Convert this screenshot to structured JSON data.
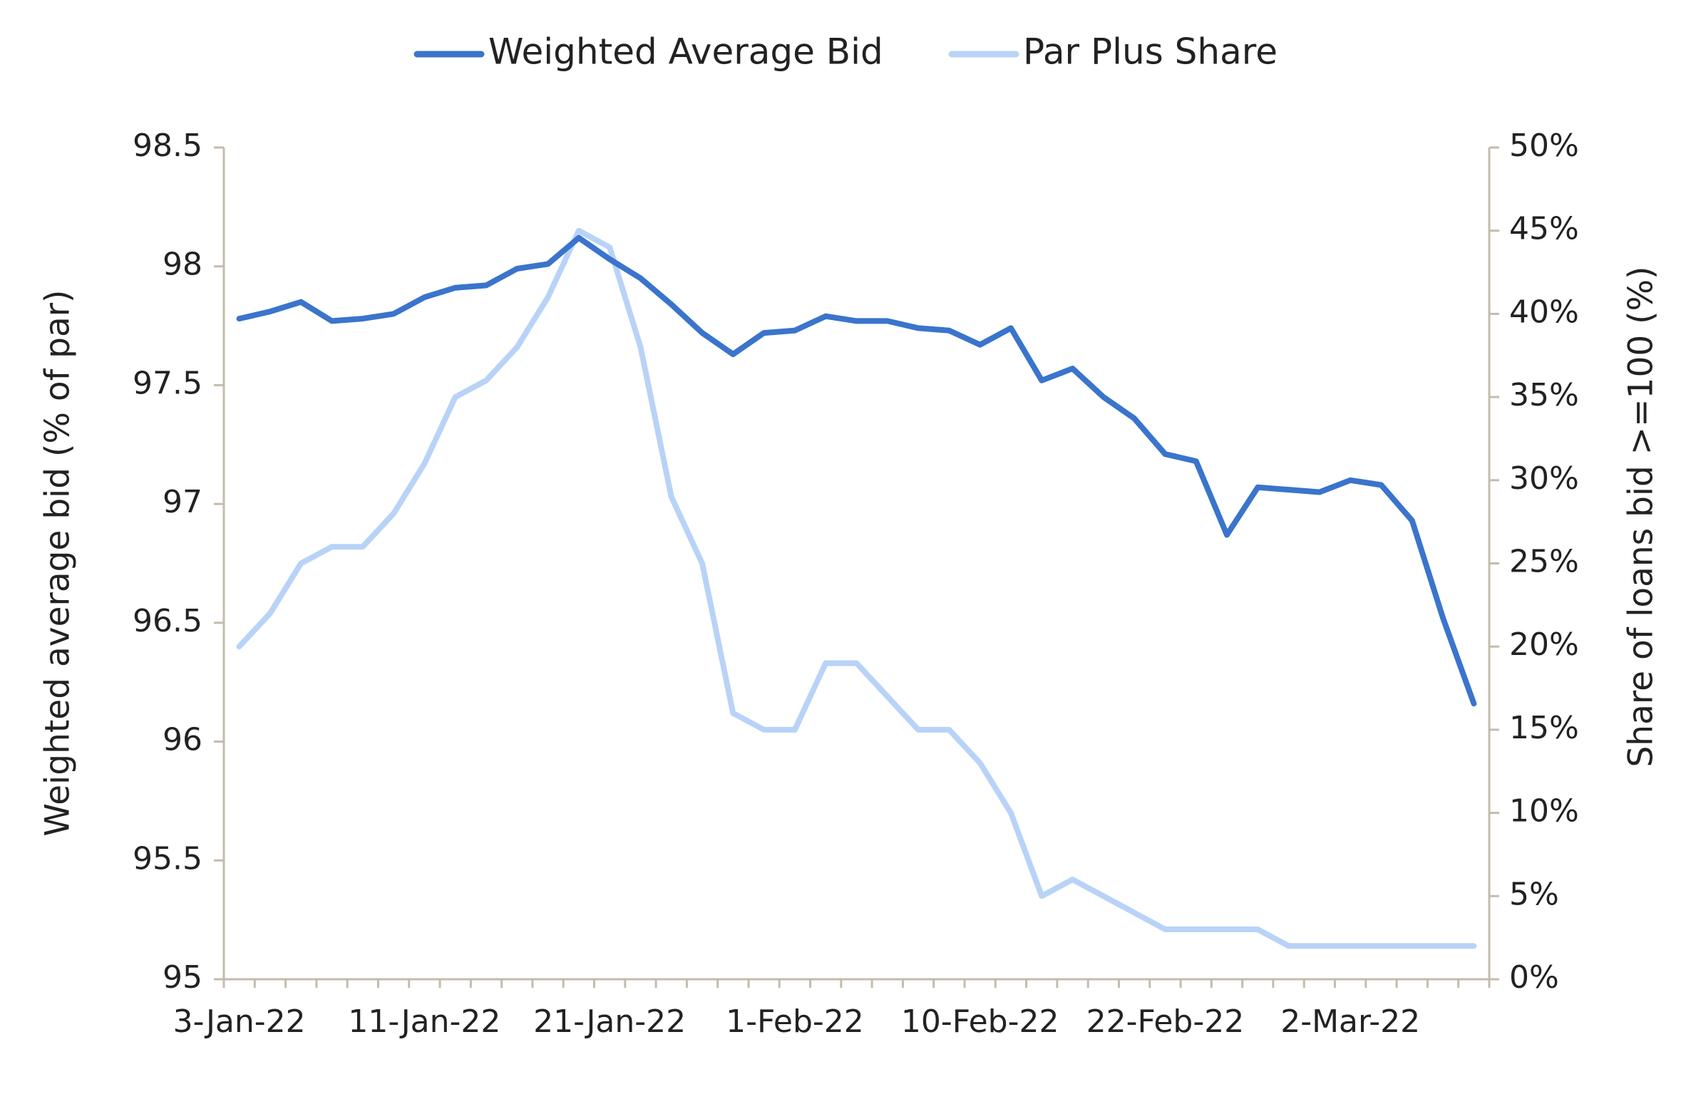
{
  "chart_data": {
    "type": "line",
    "y_label": "Weighted average bid (% of par)",
    "y2_label": "Share of loans bid >=100 (%)",
    "categories": [
      "3-Jan-22",
      null,
      null,
      null,
      null,
      null,
      "11-Jan-22",
      null,
      null,
      null,
      null,
      null,
      "21-Jan-22",
      null,
      null,
      null,
      null,
      null,
      "1-Feb-22",
      null,
      null,
      null,
      null,
      null,
      "10-Feb-22",
      null,
      null,
      null,
      null,
      null,
      "22-Feb-22",
      null,
      null,
      null,
      null,
      null,
      "2-Mar-22",
      null,
      null,
      null,
      null
    ],
    "series": [
      {
        "name": "Weighted Average Bid",
        "color": "#3a74cc",
        "values": [
          97.78,
          97.81,
          97.85,
          97.77,
          97.78,
          97.8,
          97.87,
          97.91,
          97.92,
          97.99,
          98.01,
          98.12,
          98.03,
          97.95,
          97.84,
          97.72,
          97.63,
          97.72,
          97.73,
          97.79,
          97.77,
          97.77,
          97.74,
          97.73,
          97.67,
          97.74,
          97.52,
          97.57,
          97.45,
          97.36,
          97.21,
          97.18,
          96.87,
          97.07,
          97.06,
          97.05,
          97.1,
          97.08,
          96.93,
          96.52,
          96.16
        ]
      },
      {
        "name": "Par Plus Share",
        "color": "#b8d3f7",
        "axis": "y2",
        "values": [
          20,
          22,
          25,
          26,
          26,
          28,
          31,
          35,
          36,
          38,
          41,
          45,
          44,
          38,
          29,
          25,
          16,
          15,
          15,
          19,
          19,
          17,
          15,
          15,
          13,
          10,
          5,
          6,
          5,
          4,
          3,
          3,
          3,
          3,
          2,
          2,
          2,
          2,
          2,
          2,
          2
        ]
      }
    ],
    "ylim": [
      95,
      98.5
    ],
    "yticks": [
      95,
      95.5,
      96,
      96.5,
      97,
      97.5,
      98,
      98.5
    ],
    "y2lim": [
      0,
      50
    ],
    "y2ticks": [
      {
        "value": 0,
        "label": "0%"
      },
      {
        "value": 5,
        "label": "5%"
      },
      {
        "value": 10,
        "label": "10%"
      },
      {
        "value": 15,
        "label": "15%"
      },
      {
        "value": 20,
        "label": "20%"
      },
      {
        "value": 25,
        "label": "25%"
      },
      {
        "value": 30,
        "label": "30%"
      },
      {
        "value": 35,
        "label": "35%"
      },
      {
        "value": 40,
        "label": "40%"
      },
      {
        "value": 45,
        "label": "45%"
      },
      {
        "value": 50,
        "label": "50%"
      }
    ],
    "legend": "top",
    "grid": false
  }
}
